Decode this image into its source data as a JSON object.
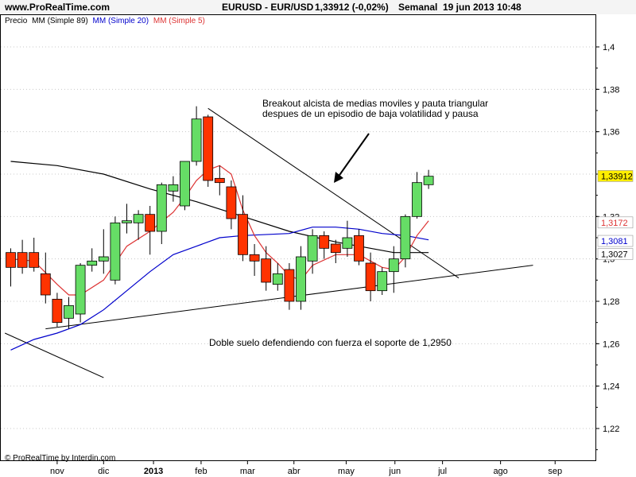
{
  "header": {
    "site": "www.ProRealTime.com",
    "instrument": "EURUSD - EUR/USD",
    "quote": "1,33912 (-0,02%)",
    "period": "Semanal",
    "datetime": "19 jun 2013 10:48"
  },
  "legend": {
    "price": "Precio",
    "ma89": "MM (Simple 89)",
    "ma20": "MM (Simple 20)",
    "ma5": "MM (Simple 5)"
  },
  "footer": {
    "copyright": "© ProRealTime by Interdin.com"
  },
  "annotations": {
    "breakout_line1": "Breakout alcista de medias moviles y pauta triangular",
    "breakout_line2": "despues de un episodio de baja volatilidad y pausa",
    "support_note": "Doble suelo defendiendo con fuerza el soporte de 1,2950"
  },
  "colors": {
    "bull": "#66dd66",
    "bear": "#ff3300",
    "ma89": "#000000",
    "ma20": "#0000cc",
    "ma5": "#dd3333",
    "last_price_bg": "#ffee00"
  },
  "chart_data": {
    "type": "candlestick",
    "timeframe": "weekly",
    "ylim": [
      1.205,
      1.415
    ],
    "y_ticks": [
      "1,4",
      "1,38",
      "1,36",
      "1,34",
      "1,32",
      "1,3",
      "1,28",
      "1,26",
      "1,24",
      "1,22"
    ],
    "y_tick_values": [
      1.4,
      1.38,
      1.36,
      1.34,
      1.32,
      1.3,
      1.28,
      1.26,
      1.24,
      1.22
    ],
    "x_ticks": [
      {
        "label": "nov",
        "week": 4
      },
      {
        "label": "dic",
        "week": 8
      },
      {
        "label": "2013",
        "week": 12.3
      },
      {
        "label": "feb",
        "week": 16.4
      },
      {
        "label": "mar",
        "week": 20.4
      },
      {
        "label": "abr",
        "week": 24.4
      },
      {
        "label": "may",
        "week": 28.9
      },
      {
        "label": "jun",
        "week": 33.1
      },
      {
        "label": "jul",
        "week": 37.2
      },
      {
        "label": "ago",
        "week": 42.2
      },
      {
        "label": "sep",
        "week": 46.9
      }
    ],
    "candles": [
      {
        "w": 0,
        "o": 1.303,
        "h": 1.305,
        "l": 1.287,
        "c": 1.296
      },
      {
        "w": 1,
        "o": 1.303,
        "h": 1.309,
        "l": 1.293,
        "c": 1.296
      },
      {
        "w": 2,
        "o": 1.303,
        "h": 1.31,
        "l": 1.294,
        "c": 1.296
      },
      {
        "w": 3,
        "o": 1.293,
        "h": 1.303,
        "l": 1.279,
        "c": 1.283
      },
      {
        "w": 4,
        "o": 1.281,
        "h": 1.284,
        "l": 1.268,
        "c": 1.27
      },
      {
        "w": 5,
        "o": 1.272,
        "h": 1.282,
        "l": 1.267,
        "c": 1.278
      },
      {
        "w": 6,
        "o": 1.274,
        "h": 1.298,
        "l": 1.27,
        "c": 1.297
      },
      {
        "w": 7,
        "o": 1.297,
        "h": 1.305,
        "l": 1.294,
        "c": 1.299
      },
      {
        "w": 8,
        "o": 1.299,
        "h": 1.314,
        "l": 1.293,
        "c": 1.301
      },
      {
        "w": 9,
        "o": 1.29,
        "h": 1.32,
        "l": 1.288,
        "c": 1.317
      },
      {
        "w": 10,
        "o": 1.317,
        "h": 1.326,
        "l": 1.312,
        "c": 1.318
      },
      {
        "w": 11,
        "o": 1.317,
        "h": 1.323,
        "l": 1.309,
        "c": 1.321
      },
      {
        "w": 12,
        "o": 1.321,
        "h": 1.325,
        "l": 1.302,
        "c": 1.313
      },
      {
        "w": 13,
        "o": 1.313,
        "h": 1.336,
        "l": 1.307,
        "c": 1.335
      },
      {
        "w": 14,
        "o": 1.332,
        "h": 1.339,
        "l": 1.327,
        "c": 1.335
      },
      {
        "w": 15,
        "o": 1.325,
        "h": 1.346,
        "l": 1.323,
        "c": 1.346
      },
      {
        "w": 16,
        "o": 1.346,
        "h": 1.372,
        "l": 1.344,
        "c": 1.366
      },
      {
        "w": 17,
        "o": 1.367,
        "h": 1.368,
        "l": 1.334,
        "c": 1.337
      },
      {
        "w": 18,
        "o": 1.338,
        "h": 1.344,
        "l": 1.33,
        "c": 1.336
      },
      {
        "w": 19,
        "o": 1.334,
        "h": 1.337,
        "l": 1.314,
        "c": 1.319
      },
      {
        "w": 20,
        "o": 1.321,
        "h": 1.33,
        "l": 1.299,
        "c": 1.302
      },
      {
        "w": 21,
        "o": 1.302,
        "h": 1.307,
        "l": 1.292,
        "c": 1.299
      },
      {
        "w": 22,
        "o": 1.3,
        "h": 1.306,
        "l": 1.285,
        "c": 1.289
      },
      {
        "w": 23,
        "o": 1.288,
        "h": 1.298,
        "l": 1.285,
        "c": 1.293
      },
      {
        "w": 24,
        "o": 1.295,
        "h": 1.298,
        "l": 1.276,
        "c": 1.28
      },
      {
        "w": 25,
        "o": 1.28,
        "h": 1.306,
        "l": 1.276,
        "c": 1.301
      },
      {
        "w": 26,
        "o": 1.299,
        "h": 1.314,
        "l": 1.293,
        "c": 1.311
      },
      {
        "w": 27,
        "o": 1.311,
        "h": 1.313,
        "l": 1.3,
        "c": 1.305
      },
      {
        "w": 28,
        "o": 1.307,
        "h": 1.309,
        "l": 1.298,
        "c": 1.303
      },
      {
        "w": 29,
        "o": 1.305,
        "h": 1.318,
        "l": 1.301,
        "c": 1.31
      },
      {
        "w": 30,
        "o": 1.311,
        "h": 1.314,
        "l": 1.297,
        "c": 1.299
      },
      {
        "w": 31,
        "o": 1.298,
        "h": 1.303,
        "l": 1.28,
        "c": 1.285
      },
      {
        "w": 32,
        "o": 1.285,
        "h": 1.296,
        "l": 1.283,
        "c": 1.294
      },
      {
        "w": 33,
        "o": 1.294,
        "h": 1.306,
        "l": 1.284,
        "c": 1.3
      },
      {
        "w": 34,
        "o": 1.3,
        "h": 1.321,
        "l": 1.296,
        "c": 1.32
      },
      {
        "w": 35,
        "o": 1.32,
        "h": 1.341,
        "l": 1.319,
        "c": 1.336
      },
      {
        "w": 36,
        "o": 1.335,
        "h": 1.342,
        "l": 1.333,
        "c": 1.339
      }
    ],
    "ma89": [
      [
        0,
        1.346
      ],
      [
        4,
        1.344
      ],
      [
        8,
        1.34
      ],
      [
        12,
        1.333
      ],
      [
        16,
        1.327
      ],
      [
        20,
        1.32
      ],
      [
        24,
        1.313
      ],
      [
        28,
        1.308
      ],
      [
        33,
        1.303
      ],
      [
        36,
        1.303
      ]
    ],
    "ma20": [
      [
        0,
        1.257
      ],
      [
        2,
        1.262
      ],
      [
        4,
        1.265
      ],
      [
        6,
        1.269
      ],
      [
        8,
        1.276
      ],
      [
        10,
        1.285
      ],
      [
        12,
        1.294
      ],
      [
        14,
        1.302
      ],
      [
        16,
        1.306
      ],
      [
        18,
        1.31
      ],
      [
        20,
        1.311
      ],
      [
        24,
        1.312
      ],
      [
        26,
        1.315
      ],
      [
        28,
        1.315
      ],
      [
        30,
        1.314
      ],
      [
        32,
        1.312
      ],
      [
        34,
        1.311
      ],
      [
        36,
        1.309
      ]
    ],
    "ma5": [
      [
        0,
        1.3
      ],
      [
        2,
        1.299
      ],
      [
        4,
        1.288
      ],
      [
        5,
        1.283
      ],
      [
        6,
        1.283
      ],
      [
        8,
        1.29
      ],
      [
        10,
        1.306
      ],
      [
        12,
        1.313
      ],
      [
        14,
        1.322
      ],
      [
        15,
        1.329
      ],
      [
        16,
        1.337
      ],
      [
        17,
        1.342
      ],
      [
        18,
        1.344
      ],
      [
        19,
        1.34
      ],
      [
        20,
        1.323
      ],
      [
        21,
        1.311
      ],
      [
        22,
        1.303
      ],
      [
        23,
        1.298
      ],
      [
        24,
        1.292
      ],
      [
        25,
        1.29
      ],
      [
        26,
        1.297
      ],
      [
        28,
        1.302
      ],
      [
        30,
        1.302
      ],
      [
        31,
        1.299
      ],
      [
        32,
        1.296
      ],
      [
        33,
        1.295
      ],
      [
        34,
        1.301
      ],
      [
        35,
        1.311
      ],
      [
        36,
        1.318
      ]
    ],
    "price_labels": [
      {
        "text": "1,33912",
        "value": 1.3391,
        "kind": "last"
      },
      {
        "text": "1,3172",
        "value": 1.3172,
        "kind": "ma5"
      },
      {
        "text": "1,3081",
        "value": 1.3081,
        "kind": "ma20"
      },
      {
        "text": "1,3027",
        "value": 1.3027,
        "kind": "ma89"
      }
    ],
    "trendlines": [
      {
        "name": "trendline-resistance",
        "from": [
          17,
          1.371
        ],
        "to": [
          38.6,
          1.291
        ]
      },
      {
        "name": "trendline-support",
        "from": [
          3,
          1.267
        ],
        "to": [
          45,
          1.297
        ]
      },
      {
        "name": "trendline-down-left",
        "from": [
          -0.5,
          1.265
        ],
        "to": [
          8,
          1.244
        ]
      }
    ]
  }
}
